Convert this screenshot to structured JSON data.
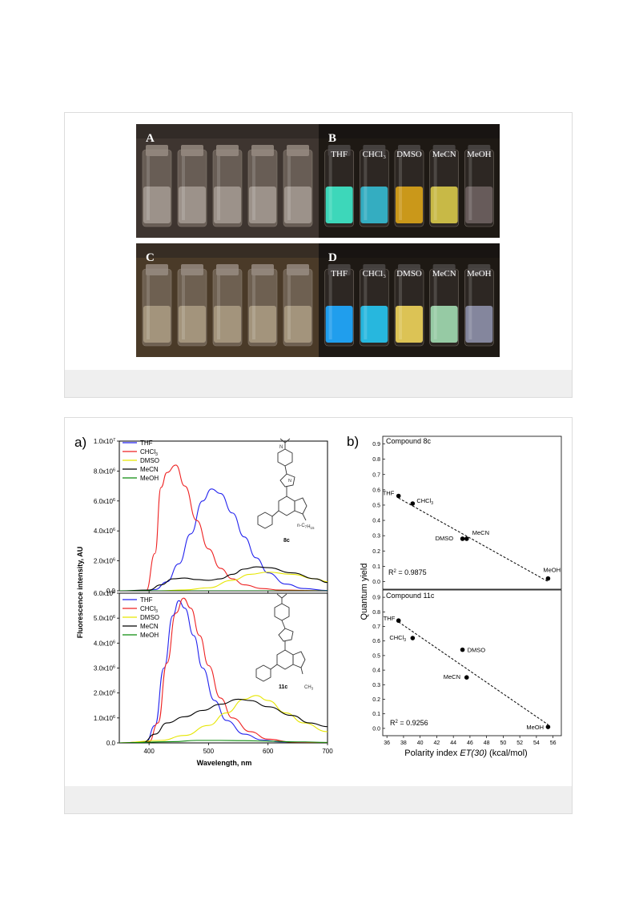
{
  "figure1": {
    "panels": [
      {
        "id": "A",
        "lit": false,
        "labels": [],
        "liquids": [
          "#cfc8c0",
          "#cfc8c0",
          "#cfc8c0",
          "#cfc8c0",
          "#cfc8c0"
        ]
      },
      {
        "id": "B",
        "lit": true,
        "labels": [
          "THF",
          "CHCl₃",
          "DMSO",
          "MeCN",
          "MeOH"
        ],
        "liquids": [
          "#3fe6c8",
          "#35b9cf",
          "#d8a21a",
          "#d6c64a",
          "#6c6060"
        ]
      },
      {
        "id": "C",
        "lit": false,
        "labels": [],
        "liquids": [
          "#d8c7a8",
          "#d8c7a8",
          "#d8c7a8",
          "#d8c7a8",
          "#d8c7a8"
        ]
      },
      {
        "id": "D",
        "lit": true,
        "labels": [
          "THF",
          "CHCl₃",
          "DMSO",
          "MeCN",
          "MeOH"
        ],
        "liquids": [
          "#1fa8ff",
          "#27c3ef",
          "#ecd05a",
          "#9fd8b0",
          "#8c8ea8"
        ]
      }
    ]
  },
  "figure2": {
    "panel_a_label": "a)",
    "panel_b_label": "b)",
    "ylabel": "Fluorescence  intensity, AU",
    "xlabel": "Wavelength, nm",
    "legend": [
      {
        "name": "THF",
        "color": "#2222ee"
      },
      {
        "name": "CHCl3",
        "color": "#ee2222"
      },
      {
        "name": "DMSO",
        "color": "#e6e600"
      },
      {
        "name": "MeCN",
        "color": "#000000"
      },
      {
        "name": "MeOH",
        "color": "#0a8a0a"
      }
    ],
    "top_yticks": [
      "0.0",
      "2.0x10^6",
      "4.0x10^6",
      "6.0x10^6",
      "8.0x10^6",
      "1.0x10^7"
    ],
    "bottom_yticks": [
      "0.0",
      "1.0x10^6",
      "2.0x10^6",
      "3.0x10^6",
      "4.0x10^6",
      "5.0x10^6",
      "6.0x10^6"
    ],
    "xticks": [
      "400",
      "500",
      "600",
      "700"
    ],
    "compound_8c": {
      "subst": "n-C7H15",
      "label": "8c"
    },
    "compound_11c": {
      "subst": "CH3",
      "label": "11c"
    },
    "qy_ylabel": "Quantum yield",
    "qy_xlabel_pre": "Polarity index ",
    "qy_xlabel_em": "ET(30)",
    "qy_xlabel_post": " (kcal/mol)",
    "qy_yticks": [
      "0.0",
      "0.1",
      "0.2",
      "0.3",
      "0.4",
      "0.5",
      "0.6",
      "0.7",
      "0.8",
      "0.9"
    ],
    "qy_xticks": [
      "36",
      "38",
      "40",
      "42",
      "44",
      "46",
      "48",
      "50",
      "52",
      "54",
      "56"
    ],
    "qy_top_title": "Compound 8c",
    "qy_bottom_title": "Compound 11c",
    "qy_top_r2": "R^2 = 0.9875",
    "qy_bottom_r2": "R^2 = 0.9256"
  },
  "chart_data": [
    {
      "type": "line",
      "title": "Compound 8c",
      "xlabel": "Wavelength, nm",
      "ylabel": "Fluorescence intensity, AU",
      "xlim": [
        350,
        700
      ],
      "ylim": [
        0,
        10000000
      ],
      "series": [
        {
          "name": "THF",
          "x": [
            350,
            390,
            410,
            430,
            450,
            470,
            490,
            505,
            520,
            540,
            560,
            580,
            600,
            630,
            660,
            700
          ],
          "values": [
            0,
            0,
            80000,
            600000,
            1800000,
            3800000,
            6000000,
            6800000,
            6500000,
            5200000,
            3600000,
            2200000,
            1200000,
            450000,
            150000,
            20000
          ]
        },
        {
          "name": "CHCl3",
          "x": [
            350,
            395,
            410,
            420,
            430,
            445,
            460,
            480,
            500,
            520,
            540,
            560,
            590,
            620,
            700
          ],
          "values": [
            0,
            0,
            2500000,
            6900000,
            7900000,
            8400000,
            7000000,
            4700000,
            2800000,
            1500000,
            800000,
            400000,
            150000,
            50000,
            0
          ]
        },
        {
          "name": "DMSO",
          "x": [
            350,
            420,
            460,
            500,
            540,
            570,
            600,
            640,
            680,
            700
          ],
          "values": [
            0,
            0,
            60000,
            200000,
            700000,
            1100000,
            1250000,
            1100000,
            800000,
            600000
          ]
        },
        {
          "name": "MeCN",
          "x": [
            350,
            400,
            420,
            440,
            460,
            480,
            500,
            520,
            540,
            560,
            580,
            600,
            640,
            680,
            700
          ],
          "values": [
            0,
            50000,
            400000,
            800000,
            850000,
            750000,
            700000,
            800000,
            1100000,
            1450000,
            1600000,
            1550000,
            1200000,
            800000,
            550000
          ]
        },
        {
          "name": "MeOH",
          "x": [
            350,
            700
          ],
          "values": [
            0,
            0
          ]
        }
      ]
    },
    {
      "type": "line",
      "title": "Compound 11c",
      "xlabel": "Wavelength, nm",
      "ylabel": "Fluorescence intensity, AU",
      "xlim": [
        350,
        700
      ],
      "ylim": [
        0,
        6000000
      ],
      "series": [
        {
          "name": "THF",
          "x": [
            350,
            395,
            410,
            425,
            440,
            450,
            460,
            475,
            490,
            510,
            530,
            560,
            590,
            620,
            700
          ],
          "values": [
            0,
            20000,
            700000,
            3000000,
            5100000,
            5700000,
            5400000,
            4300000,
            3000000,
            1700000,
            900000,
            350000,
            120000,
            40000,
            0
          ]
        },
        {
          "name": "CHCl3",
          "x": [
            350,
            400,
            415,
            430,
            445,
            458,
            470,
            485,
            500,
            520,
            540,
            570,
            600,
            640,
            700
          ],
          "values": [
            0,
            50000,
            800000,
            3200000,
            5200000,
            5800000,
            5400000,
            4300000,
            3100000,
            1800000,
            1000000,
            450000,
            150000,
            30000,
            0
          ]
        },
        {
          "name": "DMSO",
          "x": [
            350,
            420,
            460,
            500,
            530,
            560,
            580,
            600,
            630,
            660,
            700
          ],
          "values": [
            0,
            100000,
            300000,
            700000,
            1200000,
            1750000,
            1900000,
            1700000,
            1200000,
            800000,
            450000
          ]
        },
        {
          "name": "MeCN",
          "x": [
            350,
            390,
            410,
            430,
            460,
            490,
            520,
            550,
            570,
            600,
            640,
            670,
            700
          ],
          "values": [
            0,
            20000,
            350000,
            800000,
            1050000,
            1300000,
            1550000,
            1750000,
            1700000,
            1450000,
            1100000,
            800000,
            650000
          ]
        },
        {
          "name": "MeOH",
          "x": [
            350,
            440,
            480,
            520,
            560,
            600,
            650,
            700
          ],
          "values": [
            0,
            50000,
            100000,
            100000,
            90000,
            70000,
            40000,
            20000
          ]
        }
      ]
    },
    {
      "type": "scatter",
      "title": "Compound 8c",
      "xlabel": "Polarity index ET(30) (kcal/mol)",
      "ylabel": "Quantum yield",
      "xlim": [
        35.5,
        57
      ],
      "ylim": [
        -0.05,
        0.95
      ],
      "points": [
        {
          "label": "THF",
          "x": 37.4,
          "y": 0.56
        },
        {
          "label": "CHCl3",
          "x": 39.1,
          "y": 0.51
        },
        {
          "label": "DMSO",
          "x": 45.1,
          "y": 0.28
        },
        {
          "label": "MeCN",
          "x": 45.6,
          "y": 0.28
        },
        {
          "label": "MeOH",
          "x": 55.4,
          "y": 0.02
        }
      ],
      "fit_r2": 0.9875
    },
    {
      "type": "scatter",
      "title": "Compound 11c",
      "xlabel": "Polarity index ET(30) (kcal/mol)",
      "ylabel": "Quantum yield",
      "xlim": [
        35.5,
        57
      ],
      "ylim": [
        -0.05,
        0.95
      ],
      "points": [
        {
          "label": "THF",
          "x": 37.4,
          "y": 0.74
        },
        {
          "label": "CHCl3",
          "x": 39.1,
          "y": 0.62
        },
        {
          "label": "DMSO",
          "x": 45.1,
          "y": 0.54
        },
        {
          "label": "MeCN",
          "x": 45.6,
          "y": 0.35
        },
        {
          "label": "MeOH",
          "x": 55.4,
          "y": 0.01
        }
      ],
      "fit_r2": 0.9256
    }
  ]
}
